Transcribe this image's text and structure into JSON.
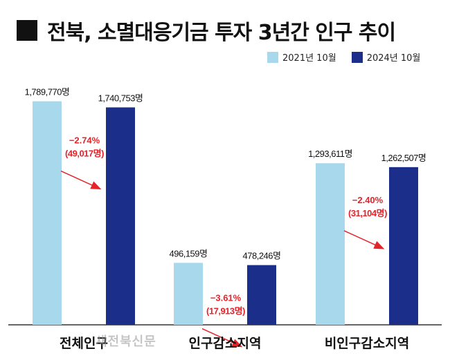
{
  "title": "전북, 소멸대응기금 투자 3년간 인구 추이",
  "watermark": "새전북신문",
  "colors": {
    "series_2021": "#a8d8ec",
    "series_2024": "#1b2f8a",
    "change": "#e5242a",
    "text": "#111111"
  },
  "chart_data": {
    "type": "bar",
    "title": "전북, 소멸대응기금 투자 3년간 인구 추이",
    "categories": [
      "전체인구",
      "인구감소지역",
      "비인구감소지역"
    ],
    "series": [
      {
        "name": "2021년 10월",
        "values": [
          1789770,
          496159,
          1293611
        ],
        "labels": [
          "1,789,770명",
          "496,159명",
          "1,293,611명"
        ]
      },
      {
        "name": "2024년 10월",
        "values": [
          1740753,
          478246,
          1262507
        ],
        "labels": [
          "1,740,753명",
          "478,246명",
          "1,262,507명"
        ]
      }
    ],
    "changes": [
      {
        "percent": "−2.74%",
        "count": "(49,017명)"
      },
      {
        "percent": "−3.61%",
        "count": "(17,913명)"
      },
      {
        "percent": "−2.40%",
        "count": "(31,104명)"
      }
    ],
    "ylim": [
      0,
      1920000
    ],
    "grid": false,
    "legend": "top-right",
    "xlabel": "",
    "ylabel": ""
  }
}
